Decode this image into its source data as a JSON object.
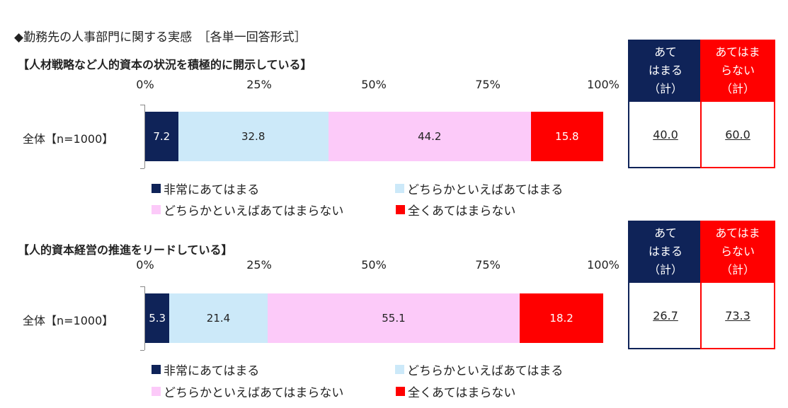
{
  "heading": "◆勤務先の人事部門に関する実感　［各単一回答形式］",
  "colors": {
    "strongly_agree": "#0f2358",
    "somewhat_agree": "#cce9f9",
    "somewhat_disagree": "#fccaf9",
    "strongly_disagree": "#ff0000",
    "agree_total_header": "#0f2358",
    "disagree_total_header": "#ff0000"
  },
  "summary_headers": {
    "agree_total": "あて\nはまる\n（計）",
    "disagree_total": "あてはま\nらない\n（計）"
  },
  "chart_data": [
    {
      "type": "bar",
      "orientation": "horizontal-stacked-percent",
      "title": "【人材戦略など人的資本の状況を積極的に開示している】",
      "categories": [
        "全体【n=1000】"
      ],
      "x_ticks": [
        "0%",
        "25%",
        "50%",
        "75%",
        "100%"
      ],
      "xlim": [
        0,
        100
      ],
      "series": [
        {
          "name": "非常にあてはまる",
          "values": [
            7.2
          ],
          "label": "7.2"
        },
        {
          "name": "どちらかといえばあてはまる",
          "values": [
            32.8
          ],
          "label": "32.8"
        },
        {
          "name": "どちらかといえばあてはまらない",
          "values": [
            44.2
          ],
          "label": "44.2"
        },
        {
          "name": "全くあてはまらない",
          "values": [
            15.8
          ],
          "label": "15.8"
        }
      ],
      "summary": {
        "agree_total": "40.0",
        "disagree_total": "60.0"
      },
      "legend": "bottom"
    },
    {
      "type": "bar",
      "orientation": "horizontal-stacked-percent",
      "title": "【人的資本経営の推進をリードしている】",
      "categories": [
        "全体【n=1000】"
      ],
      "x_ticks": [
        "0%",
        "25%",
        "50%",
        "75%",
        "100%"
      ],
      "xlim": [
        0,
        100
      ],
      "series": [
        {
          "name": "非常にあてはまる",
          "values": [
            5.3
          ],
          "label": "5.3"
        },
        {
          "name": "どちらかといえばあてはまる",
          "values": [
            21.4
          ],
          "label": "21.4"
        },
        {
          "name": "どちらかといえばあてはまらない",
          "values": [
            55.1
          ],
          "label": "55.1"
        },
        {
          "name": "全くあてはまらない",
          "values": [
            18.2
          ],
          "label": "18.2"
        }
      ],
      "summary": {
        "agree_total": "26.7",
        "disagree_total": "73.3"
      },
      "legend": "bottom"
    }
  ]
}
